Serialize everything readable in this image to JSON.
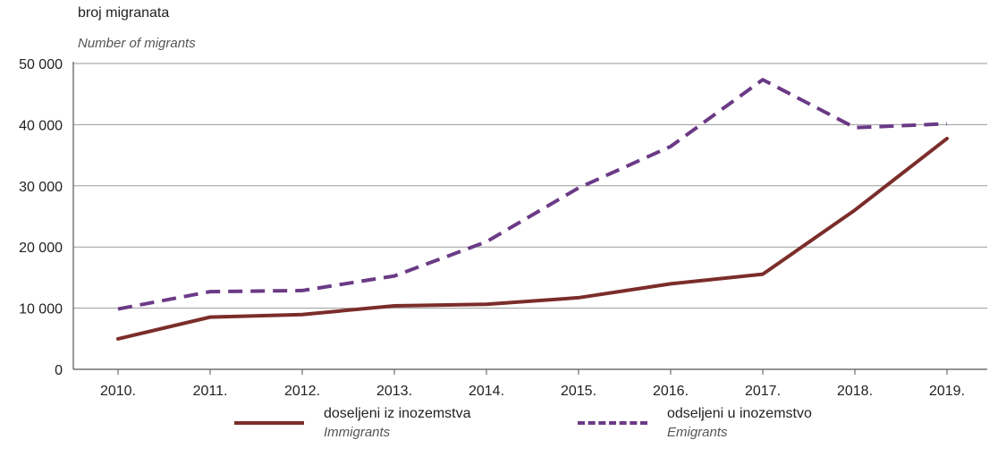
{
  "chart_data": {
    "type": "line",
    "ylabel": "broj migranata",
    "ylabel_en": "Number of migrants",
    "categories": [
      "2010.",
      "2011.",
      "2012.",
      "2013.",
      "2014.",
      "2015.",
      "2016.",
      "2017.",
      "2018.",
      "2019."
    ],
    "ylim": [
      0,
      50000
    ],
    "yticks": [
      0,
      10000,
      20000,
      30000,
      40000,
      50000
    ],
    "ytick_labels": [
      "0",
      "10 000",
      "20 000",
      "30 000",
      "40 000",
      "50 000"
    ],
    "grid": "horizontal",
    "legend_position": "bottom",
    "series": [
      {
        "name": "doseljeni iz inozemstva",
        "name_en": "Immigrants",
        "color": "#7b2d2a",
        "style": "solid",
        "values": [
          4985,
          8534,
          8959,
          10378,
          10638,
          11706,
          13985,
          15553,
          26029,
          37726
        ]
      },
      {
        "name": "odseljeni u inozemstvo",
        "name_en": "Emigrants",
        "color": "#6b3a86",
        "style": "dashed",
        "values": [
          9860,
          12699,
          12877,
          15262,
          20858,
          29651,
          36436,
          47352,
          39515,
          40148
        ]
      }
    ]
  }
}
